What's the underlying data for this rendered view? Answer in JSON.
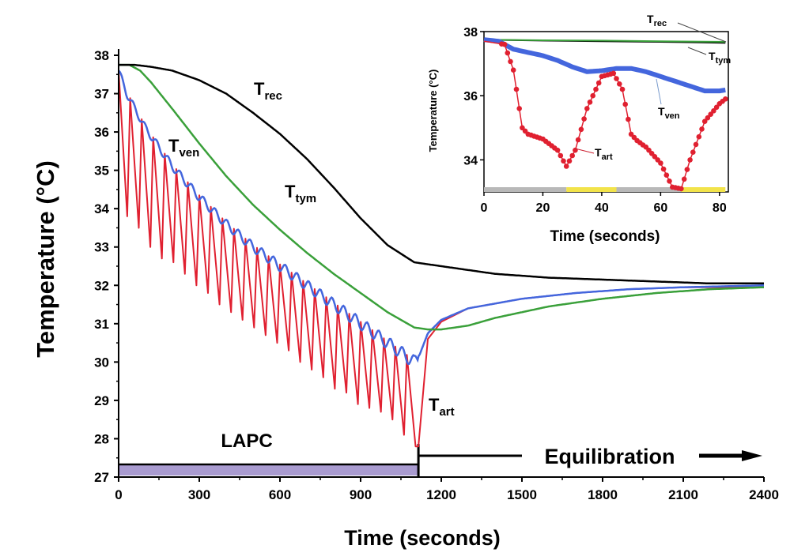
{
  "chart_data": [
    {
      "type": "line",
      "xlabel": "Time (seconds)",
      "ylabel": "Temperature (°C)",
      "xlim": [
        0,
        2400
      ],
      "ylim": [
        27,
        38
      ],
      "xticks": [
        0,
        300,
        600,
        900,
        1200,
        1500,
        1800,
        2100,
        2400
      ],
      "yticks": [
        27,
        28,
        29,
        30,
        31,
        32,
        33,
        34,
        35,
        36,
        37,
        38
      ],
      "grid": false,
      "series": [
        {
          "name": "Trec",
          "color": "#000000",
          "x": [
            0,
            60,
            120,
            200,
            300,
            400,
            500,
            600,
            700,
            800,
            900,
            1000,
            1100,
            1200,
            1300,
            1400,
            1500,
            1600,
            1800,
            2000,
            2200,
            2400
          ],
          "y": [
            37.75,
            37.75,
            37.7,
            37.6,
            37.35,
            37.0,
            36.5,
            35.95,
            35.3,
            34.55,
            33.75,
            33.05,
            32.6,
            32.5,
            32.4,
            32.3,
            32.25,
            32.2,
            32.15,
            32.1,
            32.05,
            32.05
          ]
        },
        {
          "name": "Ttym",
          "color": "#3aa03a",
          "x": [
            0,
            40,
            80,
            120,
            200,
            300,
            400,
            500,
            600,
            700,
            800,
            900,
            1000,
            1100,
            1150,
            1200,
            1300,
            1400,
            1600,
            1800,
            2000,
            2200,
            2400
          ],
          "y": [
            37.75,
            37.75,
            37.6,
            37.3,
            36.6,
            35.7,
            34.85,
            34.1,
            33.45,
            32.85,
            32.3,
            31.8,
            31.3,
            30.9,
            30.85,
            30.85,
            30.95,
            31.15,
            31.45,
            31.65,
            31.8,
            31.9,
            31.95
          ]
        },
        {
          "name": "Tven",
          "color": "#4466dd",
          "x": [
            0,
            30,
            100,
            200,
            300,
            400,
            500,
            600,
            700,
            800,
            900,
            1000,
            1050,
            1100,
            1120,
            1150,
            1200,
            1300,
            1500,
            1700,
            1900,
            2100,
            2400
          ],
          "y": [
            37.6,
            37.0,
            36.1,
            35.1,
            34.3,
            33.6,
            33.0,
            32.5,
            32.0,
            31.5,
            31.0,
            30.5,
            30.25,
            30.0,
            30.2,
            30.75,
            31.1,
            31.4,
            31.65,
            31.8,
            31.9,
            31.95,
            32.0
          ]
        },
        {
          "name": "Tart",
          "color": "#e02030",
          "x": [
            0,
            1115,
            1150,
            1200,
            1300,
            1500,
            1700,
            1900,
            2100,
            2400
          ],
          "y": [
            37.6,
            27.8,
            30.6,
            31.05,
            31.4,
            31.65,
            31.8,
            31.9,
            31.95,
            31.95
          ],
          "oscillation_troughs": [
            33.8,
            33.5,
            33.0,
            32.7,
            32.6,
            32.3,
            32.0,
            31.8,
            31.5,
            31.3,
            31.1,
            30.9,
            30.7,
            30.5,
            30.3,
            30.0,
            29.8,
            29.6,
            29.3,
            29.2,
            28.9,
            28.8,
            28.7,
            28.5,
            28.1,
            27.8
          ]
        }
      ],
      "annotations": [
        {
          "main": "T",
          "sub": "rec"
        },
        {
          "main": "T",
          "sub": "ven"
        },
        {
          "main": "T",
          "sub": "tym"
        },
        {
          "main": "T",
          "sub": "art"
        }
      ],
      "phases": [
        {
          "label": "LAPC",
          "start": 0,
          "end": 1115,
          "color": "#a99bd0"
        },
        {
          "label": "Equilibration",
          "start": 1115,
          "end": 2400
        }
      ]
    },
    {
      "type": "line",
      "xlabel": "Time (seconds)",
      "ylabel": "Temperature (°C)",
      "xlim": [
        0,
        83
      ],
      "ylim": [
        33,
        38
      ],
      "xticks": [
        0,
        20,
        40,
        60,
        80
      ],
      "yticks": [
        34,
        36,
        38
      ],
      "series": [
        {
          "name": "Trec",
          "color": "#000000",
          "x": [
            0,
            20,
            40,
            60,
            82
          ],
          "y": [
            37.75,
            37.72,
            37.7,
            37.68,
            37.65
          ]
        },
        {
          "name": "Ttym",
          "color": "#3aa03a",
          "x": [
            0,
            20,
            40,
            60,
            82
          ],
          "y": [
            37.75,
            37.73,
            37.72,
            37.7,
            37.68
          ]
        },
        {
          "name": "Tven",
          "color": "#4466dd",
          "x": [
            0,
            5,
            10,
            15,
            20,
            25,
            30,
            35,
            40,
            45,
            50,
            55,
            60,
            65,
            70,
            75,
            80,
            82
          ],
          "y": [
            37.75,
            37.7,
            37.45,
            37.35,
            37.25,
            37.1,
            36.9,
            36.75,
            36.78,
            36.85,
            36.85,
            36.75,
            36.6,
            36.45,
            36.3,
            36.15,
            36.15,
            36.18
          ]
        },
        {
          "name": "Tart",
          "color": "#e02030",
          "x": [
            0,
            7,
            10,
            13,
            15,
            20,
            25,
            28,
            31,
            35,
            40,
            44,
            47,
            50,
            52,
            55,
            60,
            64,
            67,
            70,
            75,
            80,
            82
          ],
          "y": [
            37.7,
            37.6,
            36.8,
            35.0,
            34.8,
            34.65,
            34.3,
            33.8,
            34.3,
            35.6,
            36.6,
            36.7,
            36.2,
            34.8,
            34.6,
            34.4,
            33.9,
            33.15,
            33.1,
            34.0,
            35.2,
            35.75,
            35.9
          ]
        }
      ],
      "annotations": [
        {
          "main": "T",
          "sub": "rec"
        },
        {
          "main": "T",
          "sub": "tym"
        },
        {
          "main": "T",
          "sub": "ven"
        },
        {
          "main": "T",
          "sub": "art"
        }
      ],
      "phase_bar": [
        {
          "start": 0,
          "end": 28,
          "color": "#b8b8b8"
        },
        {
          "start": 28,
          "end": 45,
          "color": "#f2e34a"
        },
        {
          "start": 45,
          "end": 67,
          "color": "#b8b8b8"
        },
        {
          "start": 67,
          "end": 82,
          "color": "#f2e34a"
        }
      ]
    }
  ]
}
